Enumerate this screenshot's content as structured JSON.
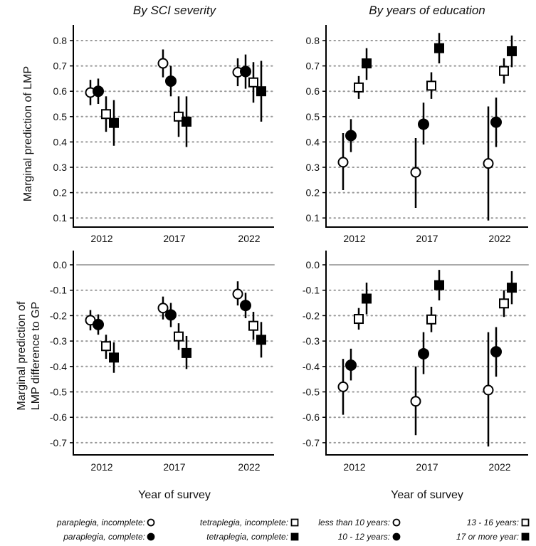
{
  "chart_data": [
    {
      "type": "scatter",
      "panel": "top-left",
      "title": "By SCI severity",
      "ylabel": "Marginal prediction of LMP",
      "xlabel": "",
      "categories": [
        "2012",
        "2017",
        "2022"
      ],
      "ylim": [
        0.05,
        0.85
      ],
      "yticks": [
        "0.1",
        "0.2",
        "0.3",
        "0.4",
        "0.5",
        "0.6",
        "0.7",
        "0.8"
      ],
      "grid": "dotted horizontal",
      "series": [
        {
          "name": "paraplegia, incomplete:",
          "marker": "open-circle",
          "values": [
            0.595,
            0.71,
            0.675
          ],
          "lower": [
            0.545,
            0.655,
            0.62
          ],
          "upper": [
            0.645,
            0.765,
            0.73
          ]
        },
        {
          "name": "paraplegia, complete:",
          "marker": "filled-circle",
          "values": [
            0.6,
            0.64,
            0.678
          ],
          "lower": [
            0.55,
            0.58,
            0.61
          ],
          "upper": [
            0.65,
            0.7,
            0.745
          ]
        },
        {
          "name": "tetraplegia, incomplete:",
          "marker": "open-square",
          "values": [
            0.51,
            0.5,
            0.635
          ],
          "lower": [
            0.44,
            0.42,
            0.555
          ],
          "upper": [
            0.58,
            0.58,
            0.715
          ]
        },
        {
          "name": "tetraplegia, complete:",
          "marker": "filled-square",
          "values": [
            0.475,
            0.48,
            0.6
          ],
          "lower": [
            0.385,
            0.38,
            0.48
          ],
          "upper": [
            0.565,
            0.58,
            0.72
          ]
        }
      ]
    },
    {
      "type": "scatter",
      "panel": "top-right",
      "title": "By years of education",
      "ylabel": "",
      "xlabel": "",
      "categories": [
        "2012",
        "2017",
        "2022"
      ],
      "ylim": [
        0.05,
        0.85
      ],
      "yticks": [
        "0.1",
        "0.2",
        "0.3",
        "0.4",
        "0.5",
        "0.6",
        "0.7",
        "0.8"
      ],
      "grid": "dotted horizontal",
      "series": [
        {
          "name": "less than 10 years:",
          "marker": "open-circle",
          "values": [
            0.32,
            0.28,
            0.315
          ],
          "lower": [
            0.21,
            0.14,
            0.09
          ],
          "upper": [
            0.435,
            0.415,
            0.54
          ]
        },
        {
          "name": "10 - 12 years:",
          "marker": "filled-circle",
          "values": [
            0.425,
            0.47,
            0.478
          ],
          "lower": [
            0.36,
            0.39,
            0.38
          ],
          "upper": [
            0.49,
            0.555,
            0.575
          ]
        },
        {
          "name": "13 - 16 years:",
          "marker": "open-square",
          "values": [
            0.615,
            0.622,
            0.68
          ],
          "lower": [
            0.57,
            0.57,
            0.63
          ],
          "upper": [
            0.66,
            0.675,
            0.73
          ]
        },
        {
          "name": "17 or more year:",
          "marker": "filled-square",
          "values": [
            0.71,
            0.77,
            0.758
          ],
          "lower": [
            0.645,
            0.71,
            0.695
          ],
          "upper": [
            0.77,
            0.83,
            0.82
          ]
        }
      ]
    },
    {
      "type": "scatter",
      "panel": "bottom-left",
      "title": "",
      "ylabel": "Marginal prediction of LMP difference to GP",
      "xlabel": "Year of survey",
      "categories": [
        "2012",
        "2017",
        "2022"
      ],
      "ylim": [
        -0.75,
        0.05
      ],
      "yticks": [
        "0.0",
        "-0.1",
        "-0.2",
        "-0.3",
        "-0.4",
        "-0.5",
        "-0.6",
        "-0.7"
      ],
      "grid": "dotted horizontal, solid at 0",
      "series": [
        {
          "name": "paraplegia, incomplete:",
          "marker": "open-circle",
          "values": [
            -0.218,
            -0.17,
            -0.115
          ],
          "lower": [
            -0.258,
            -0.215,
            -0.16
          ],
          "upper": [
            -0.178,
            -0.125,
            -0.065
          ]
        },
        {
          "name": "paraplegia, complete:",
          "marker": "filled-circle",
          "values": [
            -0.235,
            -0.197,
            -0.16
          ],
          "lower": [
            -0.275,
            -0.245,
            -0.21
          ],
          "upper": [
            -0.195,
            -0.15,
            -0.11
          ]
        },
        {
          "name": "tetraplegia, incomplete:",
          "marker": "open-square",
          "values": [
            -0.32,
            -0.282,
            -0.24
          ],
          "lower": [
            -0.37,
            -0.335,
            -0.295
          ],
          "upper": [
            -0.275,
            -0.23,
            -0.185
          ]
        },
        {
          "name": "tetraplegia, complete:",
          "marker": "filled-square",
          "values": [
            -0.365,
            -0.347,
            -0.295
          ],
          "lower": [
            -0.425,
            -0.41,
            -0.365
          ],
          "upper": [
            -0.305,
            -0.28,
            -0.225
          ]
        }
      ]
    },
    {
      "type": "scatter",
      "panel": "bottom-right",
      "title": "",
      "ylabel": "",
      "xlabel": "Year of survey",
      "categories": [
        "2012",
        "2017",
        "2022"
      ],
      "ylim": [
        -0.75,
        0.05
      ],
      "yticks": [
        "0.0",
        "-0.1",
        "-0.2",
        "-0.3",
        "-0.4",
        "-0.5",
        "-0.6",
        "-0.7"
      ],
      "grid": "dotted horizontal, solid at 0",
      "series": [
        {
          "name": "less than 10 years:",
          "marker": "open-circle",
          "values": [
            -0.48,
            -0.537,
            -0.493
          ],
          "lower": [
            -0.59,
            -0.67,
            -0.715
          ],
          "upper": [
            -0.37,
            -0.4,
            -0.265
          ]
        },
        {
          "name": "10 - 12 years:",
          "marker": "filled-circle",
          "values": [
            -0.395,
            -0.35,
            -0.342
          ],
          "lower": [
            -0.455,
            -0.43,
            -0.44
          ],
          "upper": [
            -0.33,
            -0.265,
            -0.245
          ]
        },
        {
          "name": "13 - 16 years:",
          "marker": "open-square",
          "values": [
            -0.213,
            -0.215,
            -0.152
          ],
          "lower": [
            -0.255,
            -0.265,
            -0.205
          ],
          "upper": [
            -0.17,
            -0.165,
            -0.1
          ]
        },
        {
          "name": "17 or more year:",
          "marker": "filled-square",
          "values": [
            -0.133,
            -0.08,
            -0.09
          ],
          "lower": [
            -0.195,
            -0.14,
            -0.155
          ],
          "upper": [
            -0.07,
            -0.02,
            -0.025
          ]
        }
      ]
    }
  ],
  "colors": {
    "marker": "#000000",
    "grid": "#999999",
    "zero_line": "#aaaaaa"
  }
}
